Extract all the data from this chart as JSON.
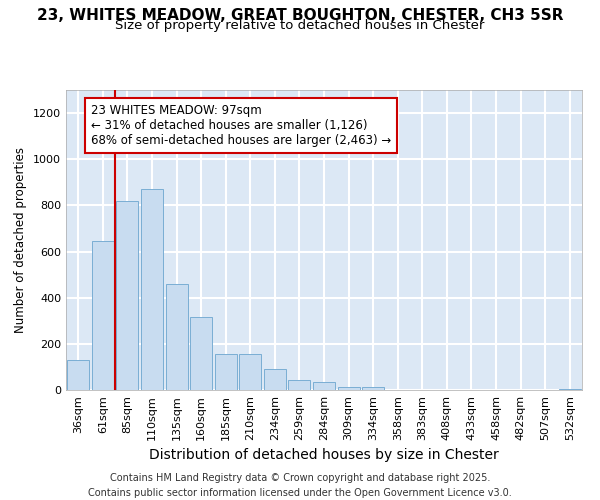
{
  "title_line1": "23, WHITES MEADOW, GREAT BOUGHTON, CHESTER, CH3 5SR",
  "title_line2": "Size of property relative to detached houses in Chester",
  "xlabel": "Distribution of detached houses by size in Chester",
  "ylabel": "Number of detached properties",
  "categories": [
    "36sqm",
    "61sqm",
    "85sqm",
    "110sqm",
    "135sqm",
    "160sqm",
    "185sqm",
    "210sqm",
    "234sqm",
    "259sqm",
    "284sqm",
    "309sqm",
    "334sqm",
    "358sqm",
    "383sqm",
    "408sqm",
    "433sqm",
    "458sqm",
    "482sqm",
    "507sqm",
    "532sqm"
  ],
  "values": [
    130,
    645,
    820,
    870,
    460,
    315,
    155,
    155,
    90,
    45,
    35,
    15,
    13,
    0,
    0,
    0,
    0,
    0,
    0,
    0,
    3
  ],
  "bar_color": "#c8dcf0",
  "bar_edge_color": "#7aaed4",
  "vline_x": 1.5,
  "vline_color": "#cc0000",
  "annotation_line1": "23 WHITES MEADOW: 97sqm",
  "annotation_line2": "← 31% of detached houses are smaller (1,126)",
  "annotation_line3": "68% of semi-detached houses are larger (2,463) →",
  "ann_box_edge": "#cc0000",
  "ylim_max": 1300,
  "yticks": [
    0,
    200,
    400,
    600,
    800,
    1000,
    1200
  ],
  "background_color": "#dce8f5",
  "grid_color": "#ffffff",
  "footer": "Contains HM Land Registry data © Crown copyright and database right 2025.\nContains public sector information licensed under the Open Government Licence v3.0.",
  "title1_fontsize": 11,
  "title2_fontsize": 9.5,
  "xlabel_fontsize": 10,
  "ylabel_fontsize": 8.5,
  "tick_fontsize": 8,
  "ann_fontsize": 8.5,
  "footer_fontsize": 7
}
